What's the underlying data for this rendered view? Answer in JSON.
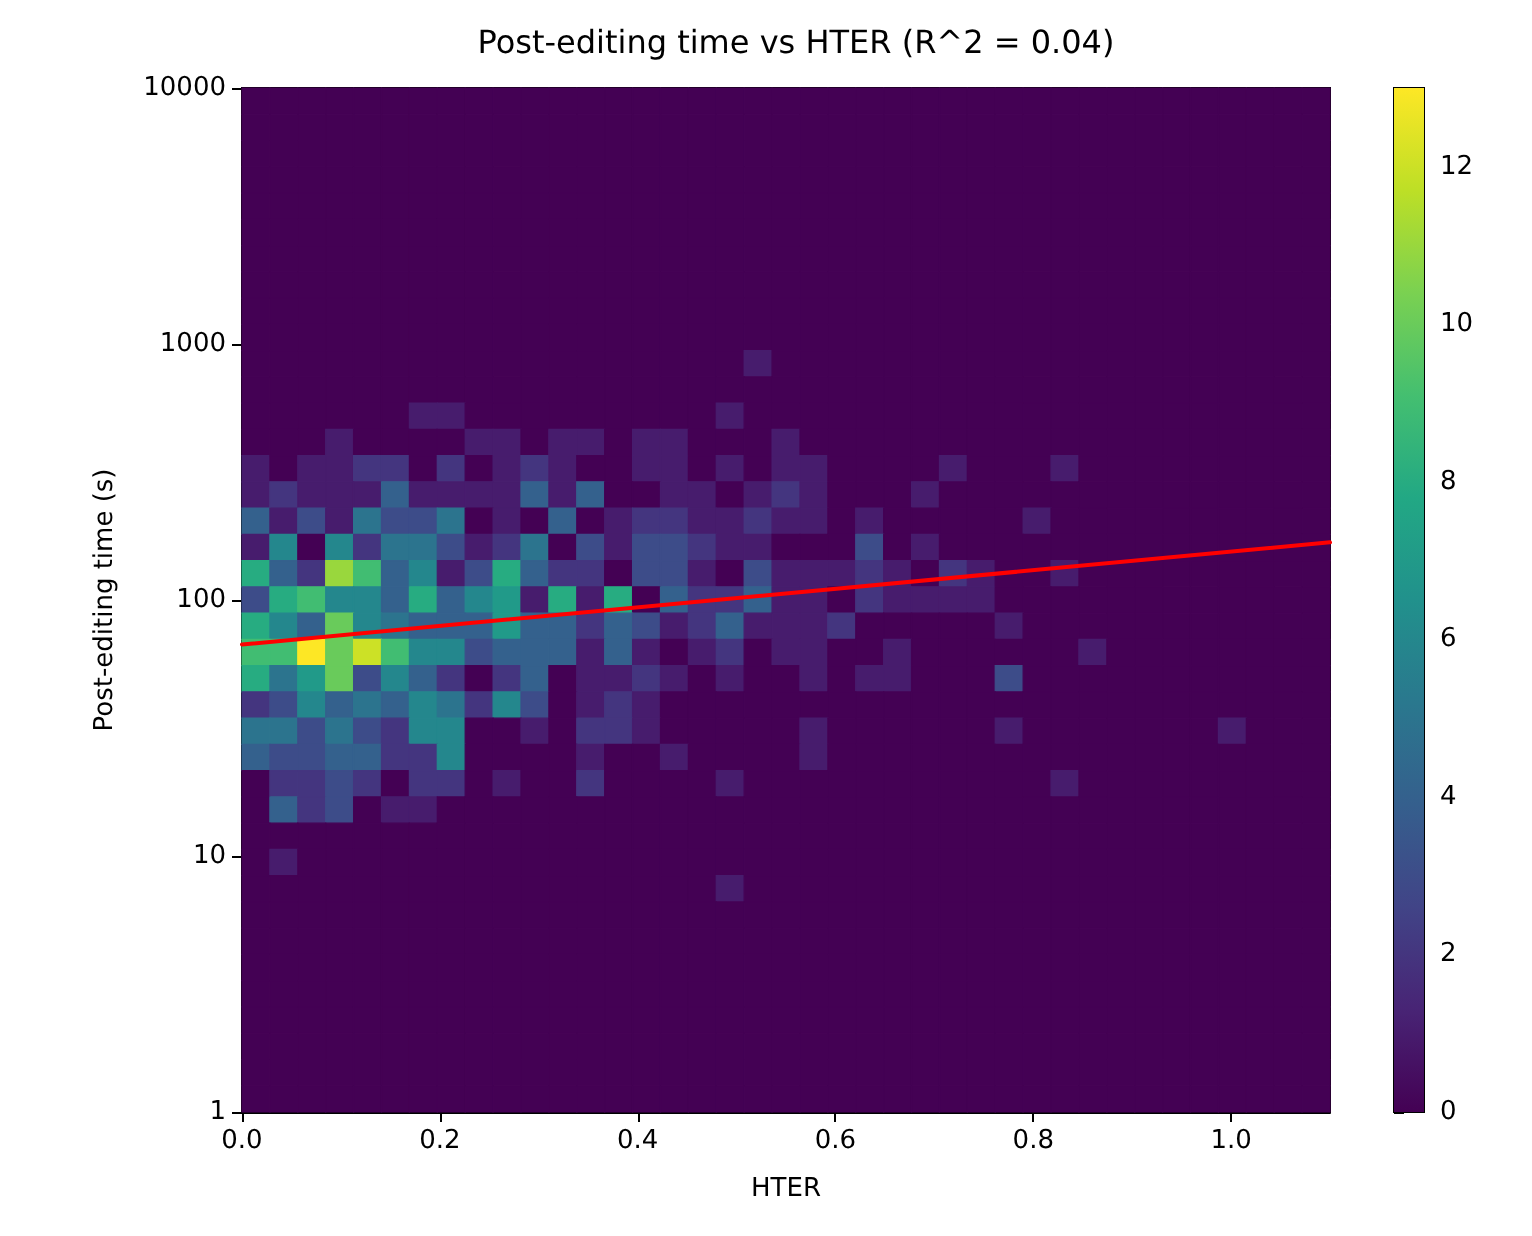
{
  "chart_data": {
    "type": "heatmap",
    "title": "Post-editing time vs HTER (R^2 = 0.04)",
    "xlabel": "HTER",
    "ylabel": "Post-editing time (s)",
    "xlim": [
      0,
      1.1
    ],
    "xticks": [
      {
        "value": 0,
        "label": "0.0"
      },
      {
        "value": 0.2,
        "label": "0.2"
      },
      {
        "value": 0.4,
        "label": "0.4"
      },
      {
        "value": 0.6,
        "label": "0.6"
      },
      {
        "value": 0.8,
        "label": "0.8"
      },
      {
        "value": 1,
        "label": "1.0"
      }
    ],
    "ylim": [
      1,
      10000
    ],
    "yticks": [
      1,
      10,
      100,
      1000,
      10000
    ],
    "log": "y",
    "clim": [
      0,
      13
    ],
    "cticks": [
      0,
      2,
      4,
      6,
      8,
      10,
      12
    ],
    "cells": [
      [
        0,
        0,
        0,
        0,
        0,
        0,
        0,
        0,
        0,
        0,
        0,
        0,
        0,
        0,
        0,
        0,
        0,
        0,
        0,
        0,
        0,
        0,
        0,
        0,
        0,
        0,
        0,
        0,
        0,
        0,
        0,
        0,
        0,
        0,
        0,
        0,
        0,
        0,
        0
      ],
      [
        0,
        0,
        0,
        0,
        0,
        0,
        0,
        0,
        0,
        0,
        0,
        0,
        0,
        0,
        0,
        0,
        0,
        0,
        0,
        0,
        0,
        0,
        0,
        0,
        0,
        0,
        0,
        0,
        0,
        0,
        0,
        0,
        0,
        0,
        0,
        0,
        0,
        0,
        0
      ],
      [
        0,
        0,
        0,
        0,
        0,
        0,
        0,
        0,
        0,
        0,
        0,
        0,
        0,
        0,
        0,
        0,
        0,
        0,
        0,
        0,
        0,
        0,
        0,
        0,
        0,
        0,
        0,
        0,
        0,
        0,
        0,
        0,
        0,
        0,
        0,
        0,
        0,
        0,
        0
      ],
      [
        0,
        0,
        0,
        0,
        0,
        0,
        0,
        0,
        0,
        0,
        0,
        0,
        0,
        0,
        0,
        0,
        0,
        0,
        0,
        0,
        0,
        0,
        0,
        0,
        0,
        0,
        0,
        0,
        0,
        0,
        0,
        0,
        0,
        0,
        0,
        0,
        0,
        0,
        0
      ],
      [
        0,
        0,
        0,
        0,
        0,
        0,
        0,
        0,
        0,
        0,
        0,
        0,
        0,
        0,
        0,
        0,
        0,
        0,
        0,
        0,
        0,
        0,
        0,
        0,
        0,
        0,
        0,
        0,
        0,
        0,
        0,
        0,
        0,
        0,
        0,
        0,
        0,
        0,
        0
      ],
      [
        0,
        0,
        0,
        0,
        0,
        0,
        0,
        0,
        0,
        0,
        0,
        0,
        0,
        0,
        0,
        0,
        0,
        0,
        0,
        0,
        0,
        0,
        0,
        0,
        0,
        0,
        0,
        0,
        0,
        0,
        0,
        0,
        0,
        0,
        0,
        0,
        0,
        0,
        0
      ],
      [
        0,
        0,
        0,
        0,
        0,
        0,
        0,
        0,
        0,
        0,
        0,
        0,
        0,
        0,
        0,
        0,
        0,
        0,
        0,
        0,
        0,
        0,
        0,
        0,
        0,
        0,
        0,
        0,
        0,
        0,
        0,
        0,
        0,
        0,
        0,
        0,
        0,
        0,
        0
      ],
      [
        0,
        0,
        0,
        0,
        0,
        0,
        0,
        0,
        0,
        0,
        0,
        0,
        0,
        0,
        0,
        0,
        0,
        0,
        0,
        0,
        0,
        0,
        0,
        0,
        0,
        0,
        0,
        0,
        0,
        0,
        0,
        0,
        0,
        0,
        0,
        0,
        0,
        0,
        0
      ],
      [
        0,
        0,
        0,
        0,
        0,
        0,
        0,
        0,
        0,
        0,
        0,
        0,
        0,
        0,
        0,
        0,
        0,
        0,
        0,
        0,
        0,
        0,
        0,
        0,
        0,
        0,
        0,
        0,
        0,
        0,
        0,
        0,
        0,
        0,
        0,
        0,
        0,
        0,
        0
      ],
      [
        0,
        0,
        0,
        0,
        0,
        0,
        0,
        0,
        0,
        0,
        0,
        0,
        0,
        0,
        0,
        0,
        0,
        0,
        0,
        0,
        0,
        0,
        0,
        0,
        0,
        0,
        0,
        0,
        0,
        0,
        0,
        0,
        0,
        0,
        0,
        0,
        0,
        0,
        0
      ],
      [
        0,
        0,
        0,
        0,
        0,
        0,
        0,
        0,
        0,
        0,
        0,
        0,
        0,
        0,
        0,
        0,
        0,
        0,
        1,
        0,
        0,
        0,
        0,
        0,
        0,
        0,
        0,
        0,
        0,
        0,
        0,
        0,
        0,
        0,
        0,
        0,
        0,
        0,
        0
      ],
      [
        0,
        0,
        0,
        0,
        0,
        0,
        0,
        0,
        0,
        0,
        0,
        0,
        0,
        0,
        0,
        0,
        0,
        0,
        0,
        0,
        0,
        0,
        0,
        0,
        0,
        0,
        0,
        0,
        0,
        0,
        0,
        0,
        0,
        0,
        0,
        0,
        0,
        0,
        0
      ],
      [
        0,
        0,
        0,
        0,
        0,
        0,
        1,
        1,
        0,
        0,
        0,
        0,
        0,
        0,
        0,
        0,
        0,
        1,
        0,
        0,
        0,
        0,
        0,
        0,
        0,
        0,
        0,
        0,
        0,
        0,
        0,
        0,
        0,
        0,
        0,
        0,
        0,
        0,
        0
      ],
      [
        0,
        0,
        0,
        1,
        0,
        0,
        0,
        0,
        1,
        1,
        0,
        1,
        1,
        0,
        1,
        1,
        0,
        0,
        0,
        1,
        0,
        0,
        0,
        0,
        0,
        0,
        0,
        0,
        0,
        0,
        0,
        0,
        0,
        0,
        0,
        0,
        0,
        0,
        0
      ],
      [
        1,
        0,
        1,
        1,
        2,
        2,
        0,
        2,
        0,
        1,
        2,
        1,
        0,
        0,
        1,
        1,
        0,
        1,
        0,
        1,
        1,
        0,
        0,
        0,
        0,
        1,
        0,
        0,
        0,
        1,
        0,
        0,
        0,
        0,
        0,
        0,
        0,
        0,
        0
      ],
      [
        1,
        2,
        1,
        1,
        1,
        4,
        1,
        1,
        1,
        1,
        4,
        1,
        4,
        0,
        0,
        1,
        1,
        0,
        1,
        2,
        1,
        0,
        0,
        0,
        1,
        0,
        0,
        0,
        0,
        0,
        0,
        0,
        0,
        0,
        0,
        0,
        0,
        0,
        0
      ],
      [
        4,
        1,
        3,
        1,
        5,
        3,
        3,
        5,
        0,
        1,
        0,
        4,
        0,
        1,
        2,
        2,
        1,
        1,
        2,
        1,
        1,
        0,
        1,
        0,
        0,
        0,
        0,
        0,
        1,
        0,
        0,
        0,
        0,
        0,
        0,
        0,
        0,
        0,
        0
      ],
      [
        1,
        6,
        0,
        6,
        2,
        5,
        5,
        3,
        1,
        2,
        5,
        0,
        3,
        1,
        3,
        3,
        2,
        1,
        1,
        0,
        0,
        0,
        3,
        0,
        1,
        0,
        0,
        0,
        0,
        0,
        0,
        0,
        0,
        0,
        0,
        0,
        0,
        0,
        0
      ],
      [
        8,
        4,
        2,
        11,
        9,
        4,
        6,
        1,
        3,
        8,
        4,
        2,
        2,
        0,
        3,
        3,
        1,
        0,
        3,
        1,
        1,
        1,
        2,
        1,
        0,
        2,
        1,
        0,
        0,
        1,
        0,
        0,
        0,
        0,
        0,
        0,
        0,
        0,
        0
      ],
      [
        3,
        8,
        9,
        6,
        6,
        4,
        8,
        4,
        6,
        7,
        1,
        8,
        1,
        8,
        0,
        4,
        2,
        2,
        4,
        1,
        1,
        0,
        2,
        1,
        1,
        1,
        1,
        0,
        0,
        0,
        0,
        0,
        0,
        0,
        0,
        0,
        0,
        0,
        0
      ],
      [
        8,
        6,
        4,
        10,
        6,
        5,
        4,
        4,
        4,
        7,
        4,
        4,
        2,
        4,
        3,
        1,
        2,
        4,
        1,
        1,
        1,
        2,
        0,
        0,
        0,
        0,
        0,
        1,
        0,
        0,
        0,
        0,
        0,
        0,
        0,
        0,
        0,
        0,
        0
      ],
      [
        9,
        9,
        13,
        10,
        12,
        9,
        6,
        6,
        3,
        4,
        4,
        4,
        1,
        4,
        1,
        0,
        1,
        2,
        0,
        1,
        1,
        0,
        0,
        1,
        0,
        0,
        0,
        0,
        0,
        0,
        1,
        0,
        0,
        0,
        0,
        0,
        0,
        0,
        0
      ],
      [
        8,
        5,
        7,
        10,
        3,
        6,
        4,
        2,
        0,
        2,
        4,
        0,
        1,
        1,
        2,
        1,
        0,
        1,
        0,
        0,
        1,
        0,
        1,
        1,
        0,
        0,
        0,
        3,
        0,
        0,
        0,
        0,
        0,
        0,
        0,
        0,
        0,
        0,
        0
      ],
      [
        2,
        3,
        6,
        4,
        5,
        4,
        6,
        5,
        2,
        6,
        3,
        0,
        1,
        2,
        1,
        0,
        0,
        0,
        0,
        0,
        0,
        0,
        0,
        0,
        0,
        0,
        0,
        0,
        0,
        0,
        0,
        0,
        0,
        0,
        0,
        0,
        0,
        0,
        0
      ],
      [
        5,
        5,
        3,
        5,
        3,
        2,
        6,
        6,
        0,
        0,
        1,
        0,
        2,
        2,
        1,
        0,
        0,
        0,
        0,
        0,
        1,
        0,
        0,
        0,
        0,
        0,
        0,
        1,
        0,
        0,
        0,
        0,
        0,
        0,
        0,
        1,
        0,
        0,
        0
      ],
      [
        4,
        3,
        3,
        4,
        4,
        2,
        2,
        6,
        0,
        0,
        0,
        0,
        1,
        0,
        0,
        1,
        0,
        0,
        0,
        0,
        1,
        0,
        0,
        0,
        0,
        0,
        0,
        0,
        0,
        0,
        0,
        0,
        0,
        0,
        0,
        0,
        0,
        0,
        0
      ],
      [
        0,
        2,
        2,
        3,
        2,
        0,
        2,
        2,
        0,
        1,
        0,
        0,
        2,
        0,
        0,
        0,
        0,
        1,
        0,
        0,
        0,
        0,
        0,
        0,
        0,
        0,
        0,
        0,
        0,
        1,
        0,
        0,
        0,
        0,
        0,
        0,
        0,
        0,
        0
      ],
      [
        0,
        4,
        2,
        3,
        0,
        1,
        1,
        0,
        0,
        0,
        0,
        0,
        0,
        0,
        0,
        0,
        0,
        0,
        0,
        0,
        0,
        0,
        0,
        0,
        0,
        0,
        0,
        0,
        0,
        0,
        0,
        0,
        0,
        0,
        0,
        0,
        0,
        0,
        0
      ],
      [
        0,
        0,
        0,
        0,
        0,
        0,
        0,
        0,
        0,
        0,
        0,
        0,
        0,
        0,
        0,
        0,
        0,
        0,
        0,
        0,
        0,
        0,
        0,
        0,
        0,
        0,
        0,
        0,
        0,
        0,
        0,
        0,
        0,
        0,
        0,
        0,
        0,
        0,
        0
      ],
      [
        0,
        1,
        0,
        0,
        0,
        0,
        0,
        0,
        0,
        0,
        0,
        0,
        0,
        0,
        0,
        0,
        0,
        0,
        0,
        0,
        0,
        0,
        0,
        0,
        0,
        0,
        0,
        0,
        0,
        0,
        0,
        0,
        0,
        0,
        0,
        0,
        0,
        0,
        0
      ],
      [
        0,
        0,
        0,
        0,
        0,
        0,
        0,
        0,
        0,
        0,
        0,
        0,
        0,
        0,
        0,
        0,
        0,
        1,
        0,
        0,
        0,
        0,
        0,
        0,
        0,
        0,
        0,
        0,
        0,
        0,
        0,
        0,
        0,
        0,
        0,
        0,
        0,
        0,
        0
      ],
      [
        0,
        0,
        0,
        0,
        0,
        0,
        0,
        0,
        0,
        0,
        0,
        0,
        0,
        0,
        0,
        0,
        0,
        0,
        0,
        0,
        0,
        0,
        0,
        0,
        0,
        0,
        0,
        0,
        0,
        0,
        0,
        0,
        0,
        0,
        0,
        0,
        0,
        0,
        0
      ],
      [
        0,
        0,
        0,
        0,
        0,
        0,
        0,
        0,
        0,
        0,
        0,
        0,
        0,
        0,
        0,
        0,
        0,
        0,
        0,
        0,
        0,
        0,
        0,
        0,
        0,
        0,
        0,
        0,
        0,
        0,
        0,
        0,
        0,
        0,
        0,
        0,
        0,
        0,
        0
      ],
      [
        0,
        0,
        0,
        0,
        0,
        0,
        0,
        0,
        0,
        0,
        0,
        0,
        0,
        0,
        0,
        0,
        0,
        0,
        0,
        0,
        0,
        0,
        0,
        0,
        0,
        0,
        0,
        0,
        0,
        0,
        0,
        0,
        0,
        0,
        0,
        0,
        0,
        0,
        0
      ],
      [
        0,
        0,
        0,
        0,
        0,
        0,
        0,
        0,
        0,
        0,
        0,
        0,
        0,
        0,
        0,
        0,
        0,
        0,
        0,
        0,
        0,
        0,
        0,
        0,
        0,
        0,
        0,
        0,
        0,
        0,
        0,
        0,
        0,
        0,
        0,
        0,
        0,
        0,
        0
      ],
      [
        0,
        0,
        0,
        0,
        0,
        0,
        0,
        0,
        0,
        0,
        0,
        0,
        0,
        0,
        0,
        0,
        0,
        0,
        0,
        0,
        0,
        0,
        0,
        0,
        0,
        0,
        0,
        0,
        0,
        0,
        0,
        0,
        0,
        0,
        0,
        0,
        0,
        0,
        0
      ],
      [
        0,
        0,
        0,
        0,
        0,
        0,
        0,
        0,
        0,
        0,
        0,
        0,
        0,
        0,
        0,
        0,
        0,
        0,
        0,
        0,
        0,
        0,
        0,
        0,
        0,
        0,
        0,
        0,
        0,
        0,
        0,
        0,
        0,
        0,
        0,
        0,
        0,
        0,
        0
      ],
      [
        0,
        0,
        0,
        0,
        0,
        0,
        0,
        0,
        0,
        0,
        0,
        0,
        0,
        0,
        0,
        0,
        0,
        0,
        0,
        0,
        0,
        0,
        0,
        0,
        0,
        0,
        0,
        0,
        0,
        0,
        0,
        0,
        0,
        0,
        0,
        0,
        0,
        0,
        0
      ],
      [
        0,
        0,
        0,
        0,
        0,
        0,
        0,
        0,
        0,
        0,
        0,
        0,
        0,
        0,
        0,
        0,
        0,
        0,
        0,
        0,
        0,
        0,
        0,
        0,
        0,
        0,
        0,
        0,
        0,
        0,
        0,
        0,
        0,
        0,
        0,
        0,
        0,
        0,
        0
      ]
    ],
    "series": [
      {
        "type": "line",
        "x": [
          0,
          1.1
        ],
        "values": [
          67,
          168
        ],
        "color": "#ff0000",
        "marker": "none",
        "line_style": "solid"
      }
    ]
  }
}
